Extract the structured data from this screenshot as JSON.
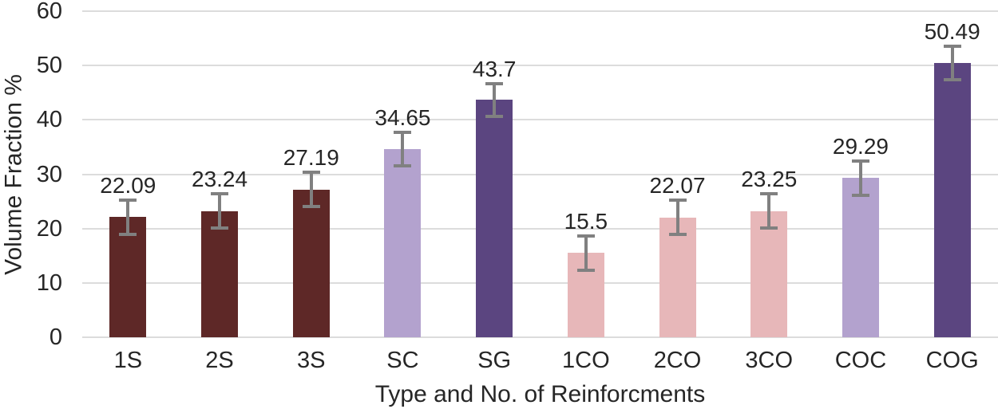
{
  "chart_data": {
    "type": "bar",
    "title": "",
    "xlabel": "Type and No. of Reinforcments",
    "ylabel": "Volume Fraction %",
    "categories": [
      "1S",
      "2S",
      "3S",
      "SC",
      "SG",
      "1CO",
      "2CO",
      "3CO",
      "COC",
      "COG"
    ],
    "values": [
      22.09,
      23.24,
      27.19,
      34.65,
      43.7,
      15.5,
      22.07,
      23.25,
      29.29,
      50.49
    ],
    "value_labels": [
      "22.09",
      "23.24",
      "27.19",
      "34.65",
      "43.7",
      "15.5",
      "22.07",
      "23.25",
      "29.29",
      "50.49"
    ],
    "errors": [
      3.4,
      3.4,
      3.4,
      3.4,
      3.3,
      3.4,
      3.4,
      3.4,
      3.4,
      3.4
    ],
    "bar_colors": [
      "#5e2827",
      "#5e2827",
      "#5e2827",
      "#b3a2ce",
      "#5b4580",
      "#e7b7b9",
      "#e7b7b9",
      "#e7b7b9",
      "#b3a2ce",
      "#5b4580"
    ],
    "ylim": [
      0,
      60
    ],
    "yticks": [
      0,
      10,
      20,
      30,
      40,
      50,
      60
    ],
    "grid": true,
    "legend": "none",
    "gridline_color": "#dcdcdc",
    "error_bar_color": "#808080",
    "text_color": "#262626",
    "background_color": "#ffffff"
  }
}
